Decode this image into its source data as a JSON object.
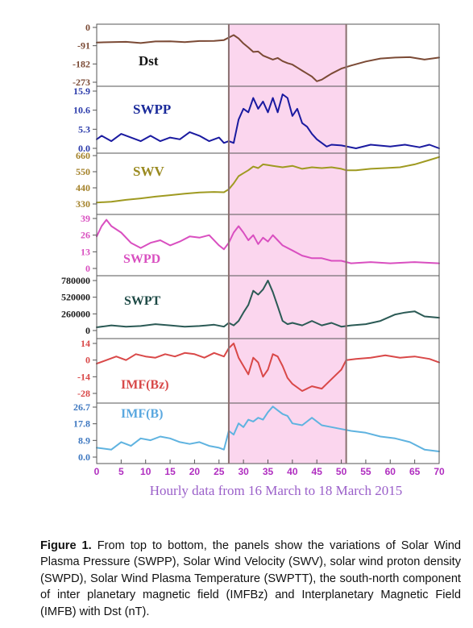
{
  "caption": {
    "lead": "Figure 1.",
    "text": "From top to bottom, the panels show the variations of Solar Wind Plasma Pressure (SWPP), Solar Wind Velocity (SWV), solar wind proton density (SWPD), Solar Wind Plasma Temperature (SWPTT), the south-north component of inter planetary magnetic field (IMFBz) and Interplanetary Magnetic Field (IMFB) with Dst (nT)."
  },
  "chart_data": {
    "type": "line",
    "xlabel": "Hourly data from 16 March to 18 March 2015",
    "xlim": [
      0,
      70
    ],
    "xticks": [
      0,
      5,
      10,
      15,
      20,
      25,
      30,
      35,
      40,
      45,
      50,
      55,
      60,
      65,
      70
    ],
    "highlight": {
      "x_start": 27,
      "x_end": 51,
      "color": "#fbd6ee"
    },
    "colors": {
      "xlabel": "#9a5fc9",
      "xtick": "#b02ec0",
      "frame": "#555555"
    },
    "panels": [
      {
        "name": "Dst",
        "color": "#7b4a35",
        "label_color": "#111111",
        "ylim": [
          -273,
          0
        ],
        "yticks": [
          0,
          -91,
          -182,
          -273
        ],
        "ytick_color": "#7b4a35",
        "x": [
          0,
          3,
          6,
          9,
          12,
          15,
          18,
          21,
          24,
          26,
          28,
          29,
          30,
          31,
          32,
          33,
          34,
          35,
          36,
          37,
          38,
          39,
          40,
          41,
          42,
          43,
          44,
          45,
          46,
          47,
          48,
          50,
          52,
          55,
          58,
          61,
          64,
          67,
          70
        ],
        "y": [
          -75,
          -73,
          -72,
          -78,
          -70,
          -69,
          -73,
          -68,
          -67,
          -63,
          -38,
          -55,
          -80,
          -100,
          -122,
          -120,
          -140,
          -150,
          -160,
          -152,
          -168,
          -178,
          -185,
          -200,
          -215,
          -230,
          -245,
          -268,
          -260,
          -245,
          -230,
          -205,
          -190,
          -170,
          -155,
          -150,
          -148,
          -160,
          -150
        ]
      },
      {
        "name": "SWPP",
        "color": "#1a1aa0",
        "label_color": "#1a2a9a",
        "ylim": [
          0,
          15.9
        ],
        "yticks": [
          15.9,
          10.6,
          5.3,
          0.0
        ],
        "ytick_color": "#2a3aaa",
        "x": [
          0,
          1,
          3,
          5,
          7,
          9,
          11,
          13,
          15,
          17,
          19,
          21,
          23,
          25,
          26,
          27,
          28,
          29,
          30,
          31,
          32,
          33,
          34,
          35,
          36,
          37,
          38,
          39,
          40,
          41,
          42,
          43,
          44,
          45,
          46,
          47,
          48,
          50,
          53,
          56,
          60,
          63,
          66,
          68,
          70
        ],
        "y": [
          2.5,
          3.5,
          2,
          4,
          3,
          2,
          3.5,
          2,
          3,
          2.5,
          4.5,
          3.5,
          2,
          3,
          1.5,
          2,
          1.5,
          8,
          11,
          10,
          14,
          11,
          13,
          10,
          14,
          10,
          15,
          14,
          9,
          11,
          7,
          6,
          4,
          2.5,
          1.5,
          0.5,
          1,
          0.8,
          0,
          1,
          0.5,
          1,
          0.3,
          1,
          0
        ]
      },
      {
        "name": "SWV",
        "color": "#9f9a21",
        "label_color": "#9a8a20",
        "ylim": [
          330,
          660
        ],
        "yticks": [
          660,
          550,
          440,
          330
        ],
        "ytick_color": "#a4822a",
        "x": [
          0,
          3,
          6,
          9,
          12,
          15,
          18,
          21,
          24,
          26,
          27,
          28,
          29,
          30,
          31,
          32,
          33,
          34,
          35,
          36,
          38,
          40,
          42,
          44,
          46,
          48,
          50,
          51,
          53,
          56,
          59,
          62,
          65,
          68,
          70
        ],
        "y": [
          340,
          345,
          358,
          368,
          380,
          390,
          400,
          408,
          412,
          410,
          430,
          470,
          520,
          540,
          560,
          585,
          575,
          600,
          595,
          590,
          580,
          590,
          570,
          580,
          575,
          580,
          570,
          560,
          560,
          570,
          575,
          580,
          600,
          630,
          650
        ]
      },
      {
        "name": "SWPD",
        "color": "#d94fc0",
        "label_color": "#d94fc0",
        "ylim": [
          0,
          39
        ],
        "yticks": [
          39,
          26,
          13,
          0
        ],
        "ytick_color": "#d94fc0",
        "x": [
          0,
          1,
          2,
          3,
          5,
          7,
          9,
          11,
          13,
          15,
          17,
          19,
          21,
          23,
          25,
          26,
          27,
          28,
          29,
          30,
          31,
          32,
          33,
          34,
          35,
          36,
          37,
          38,
          40,
          42,
          44,
          46,
          48,
          50,
          52,
          56,
          60,
          65,
          70
        ],
        "y": [
          25,
          33,
          38,
          33,
          28,
          20,
          16,
          20,
          22,
          18,
          21,
          25,
          24,
          26,
          18,
          15,
          20,
          28,
          33,
          28,
          22,
          26,
          19,
          24,
          21,
          26,
          22,
          18,
          14,
          10,
          8,
          8,
          6,
          6,
          4,
          5,
          4,
          5,
          4
        ]
      },
      {
        "name": "SWPT",
        "color": "#2b5a55",
        "label_color": "#1e4a46",
        "ylim": [
          0,
          780000
        ],
        "yticks": [
          780000,
          520000,
          260000,
          0
        ],
        "ytick_color": "#1a1a1a",
        "x": [
          0,
          3,
          6,
          9,
          12,
          15,
          18,
          21,
          24,
          26,
          27,
          28,
          29,
          30,
          31,
          32,
          33,
          34,
          35,
          36,
          37,
          38,
          39,
          40,
          42,
          44,
          46,
          48,
          50,
          52,
          55,
          58,
          61,
          63,
          65,
          67,
          70
        ],
        "y": [
          50000,
          80000,
          60000,
          70000,
          100000,
          80000,
          60000,
          70000,
          90000,
          60000,
          120000,
          80000,
          150000,
          280000,
          400000,
          620000,
          560000,
          640000,
          780000,
          600000,
          380000,
          150000,
          100000,
          120000,
          80000,
          150000,
          80000,
          120000,
          60000,
          80000,
          100000,
          150000,
          250000,
          280000,
          300000,
          220000,
          200000
        ]
      },
      {
        "name": "IMF(Bz)",
        "color": "#d94848",
        "label_color": "#d84a4a",
        "ylim": [
          -28,
          14
        ],
        "yticks": [
          14,
          0,
          -14,
          -28
        ],
        "ytick_color": "#d94848",
        "x": [
          0,
          2,
          4,
          6,
          8,
          10,
          12,
          14,
          16,
          18,
          20,
          22,
          24,
          26,
          27,
          28,
          29,
          30,
          31,
          32,
          33,
          34,
          35,
          36,
          37,
          38,
          39,
          40,
          42,
          44,
          46,
          48,
          50,
          51,
          53,
          56,
          59,
          62,
          65,
          68,
          70
        ],
        "y": [
          -3,
          0,
          3,
          0,
          5,
          3,
          2,
          5,
          3,
          6,
          5,
          2,
          6,
          3,
          10,
          14,
          2,
          -5,
          -12,
          2,
          -2,
          -14,
          -8,
          5,
          3,
          -5,
          -15,
          -20,
          -26,
          -22,
          -24,
          -16,
          -8,
          0,
          1,
          2,
          4,
          2,
          3,
          1,
          -2
        ]
      },
      {
        "name": "IMF(B)",
        "color": "#5fb3e0",
        "label_color": "#5aa8e0",
        "ylim": [
          0,
          26.7
        ],
        "yticks": [
          26.7,
          17.8,
          8.9,
          0.0
        ],
        "ytick_color": "#3e78c0",
        "x": [
          0,
          3,
          5,
          7,
          9,
          11,
          13,
          15,
          17,
          19,
          21,
          23,
          25,
          26,
          27,
          28,
          29,
          30,
          31,
          32,
          33,
          34,
          35,
          36,
          37,
          38,
          39,
          40,
          42,
          44,
          46,
          48,
          50,
          52,
          55,
          58,
          61,
          64,
          67,
          70
        ],
        "y": [
          5,
          4,
          8,
          6,
          10,
          9,
          11,
          10,
          8,
          7,
          8,
          6,
          5,
          4,
          14,
          12,
          18,
          16,
          20,
          19,
          21,
          20,
          24,
          27,
          25,
          23,
          22,
          18,
          17,
          21,
          17,
          16,
          15,
          14,
          13,
          11,
          10,
          8,
          4,
          3
        ]
      }
    ]
  }
}
